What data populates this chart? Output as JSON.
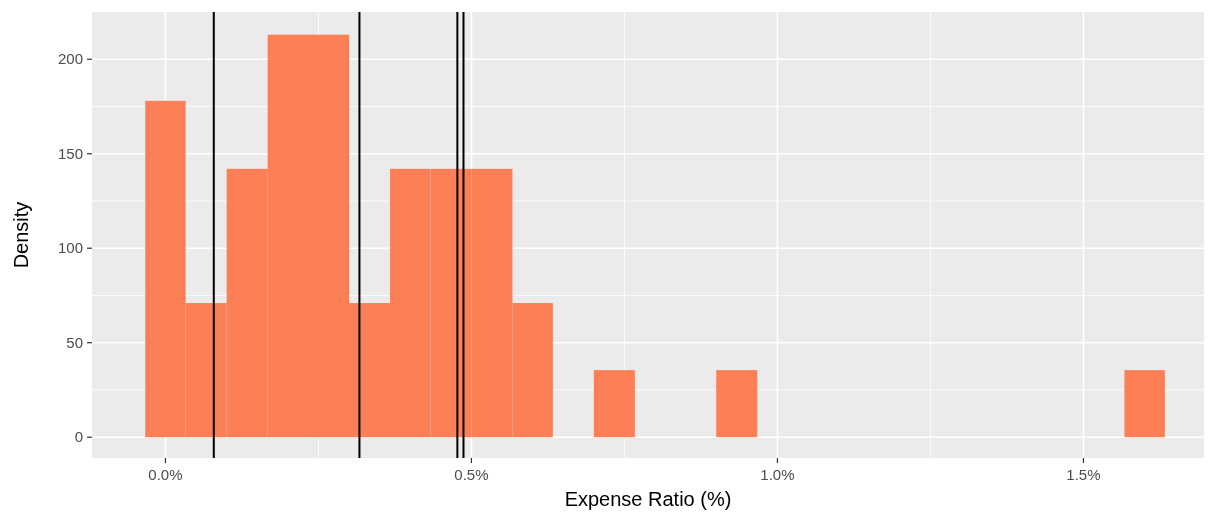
{
  "chart_data": {
    "type": "histogram",
    "xlabel": "Expense Ratio (%)",
    "ylabel": "Density",
    "bins": [
      -0.033,
      0.033,
      0.1,
      0.167,
      0.233,
      0.3,
      0.367,
      0.433,
      0.5,
      0.567,
      0.633,
      0.7,
      0.767,
      0.9,
      0.967,
      1.567,
      1.633
    ],
    "values": [
      178,
      71,
      142,
      213,
      213,
      71,
      142,
      142,
      142,
      71,
      0,
      35.5,
      0,
      35.5,
      0,
      35.5
    ],
    "color": "#fc7f55",
    "xlim": [
      -0.12,
      1.697
    ],
    "ylim": [
      -11,
      225
    ],
    "xticks": [
      {
        "value": 0,
        "label": "0.0%"
      },
      {
        "value": 0.25,
        "label": null
      },
      {
        "value": 0.5,
        "label": "0.5%"
      },
      {
        "value": 0.75,
        "label": null
      },
      {
        "value": 1,
        "label": "1.0%"
      },
      {
        "value": 1.25,
        "label": null
      },
      {
        "value": 1.5,
        "label": "1.5%"
      }
    ],
    "yticks": [
      0,
      {
        "value": 25,
        "label": null
      },
      50,
      {
        "value": 75,
        "label": null
      },
      100,
      {
        "value": 125,
        "label": null
      },
      150,
      {
        "value": 175,
        "label": null
      },
      200
    ],
    "grid": true,
    "ref_lines": [
      {
        "axis": "x",
        "value": 0.079,
        "color": "#000000"
      },
      {
        "axis": "x",
        "value": 0.317,
        "color": "#000000"
      },
      {
        "axis": "x",
        "value": 0.477,
        "color": "#000000"
      },
      {
        "axis": "x",
        "value": 0.487,
        "color": "#000000"
      }
    ]
  }
}
